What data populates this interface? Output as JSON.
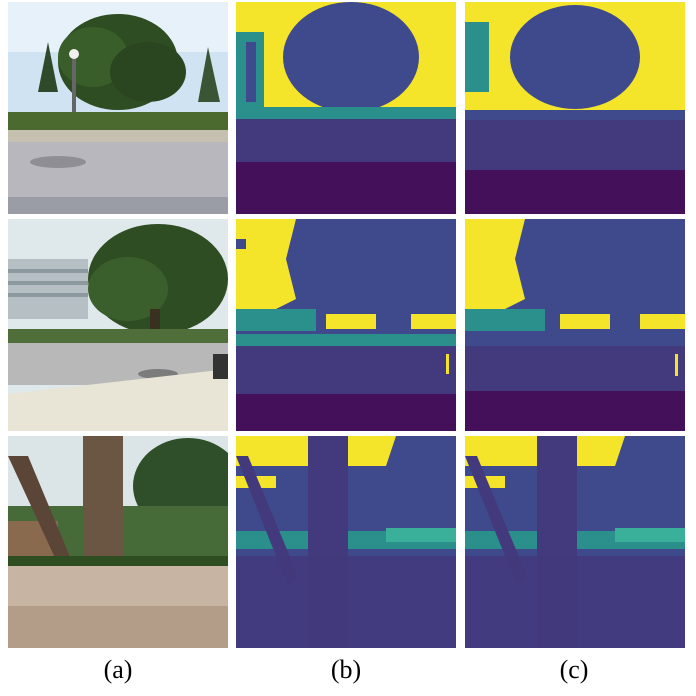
{
  "figure": {
    "columns": [
      {
        "id": "a",
        "label": "(a)",
        "kind": "photograph"
      },
      {
        "id": "b",
        "label": "(b)",
        "kind": "depth-map"
      },
      {
        "id": "c",
        "label": "(c)",
        "kind": "depth-map"
      }
    ],
    "rows": [
      {
        "id": "row-1",
        "scene": "tree-by-road"
      },
      {
        "id": "row-2",
        "scene": "tree-beside-building"
      },
      {
        "id": "row-3",
        "scene": "tree-trunk-closeup"
      }
    ]
  },
  "colors": {
    "map_yellow": "#f5e52a",
    "map_teal": "#2b8f8c",
    "map_blue": "#3e4a8b",
    "map_indigo": "#433a7d",
    "map_purple": "#44105a",
    "sky": "#cfe3f3",
    "foliage": "#2f4d22",
    "road": "#b7b7bd"
  }
}
